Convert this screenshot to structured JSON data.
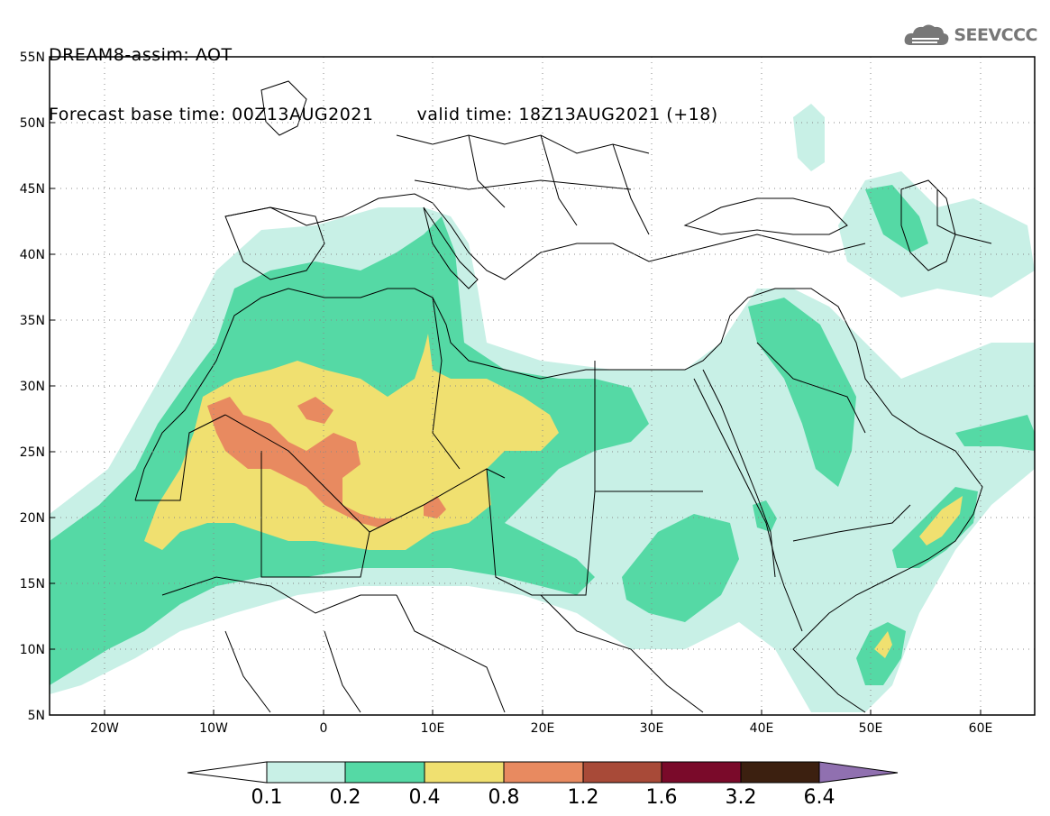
{
  "header": {
    "title": "DREAM8-assim: AOT",
    "base_time": "Forecast base time: 00Z13AUG2021",
    "valid_time": "valid time: 18Z13AUG2021 (+18)"
  },
  "logo": {
    "text": "SEEVCCC",
    "icon": "cloud-icon"
  },
  "map": {
    "lat_labels": [
      "55N",
      "50N",
      "45N",
      "40N",
      "35N",
      "30N",
      "25N",
      "20N",
      "15N",
      "10N",
      "5N"
    ],
    "lon_labels": [
      "20W",
      "10W",
      "0",
      "10E",
      "20E",
      "30E",
      "40E",
      "50E",
      "60E"
    ],
    "lat_range": [
      5,
      55
    ],
    "lon_range": [
      -25,
      65
    ],
    "grid": "dotted"
  },
  "legend": {
    "labels": [
      "0.1",
      "0.2",
      "0.4",
      "0.8",
      "1.2",
      "1.6",
      "3.2",
      "6.4"
    ],
    "colors": [
      "#ffffff",
      "#c8f0e6",
      "#55d9a5",
      "#f0e070",
      "#e88a60",
      "#a84a38",
      "#7a0a2a",
      "#3c2010",
      "#9070b0"
    ]
  },
  "colors": {
    "c1": "#c8f0e6",
    "c2": "#55d9a5",
    "c3": "#f0e070",
    "c4": "#e88a60"
  }
}
